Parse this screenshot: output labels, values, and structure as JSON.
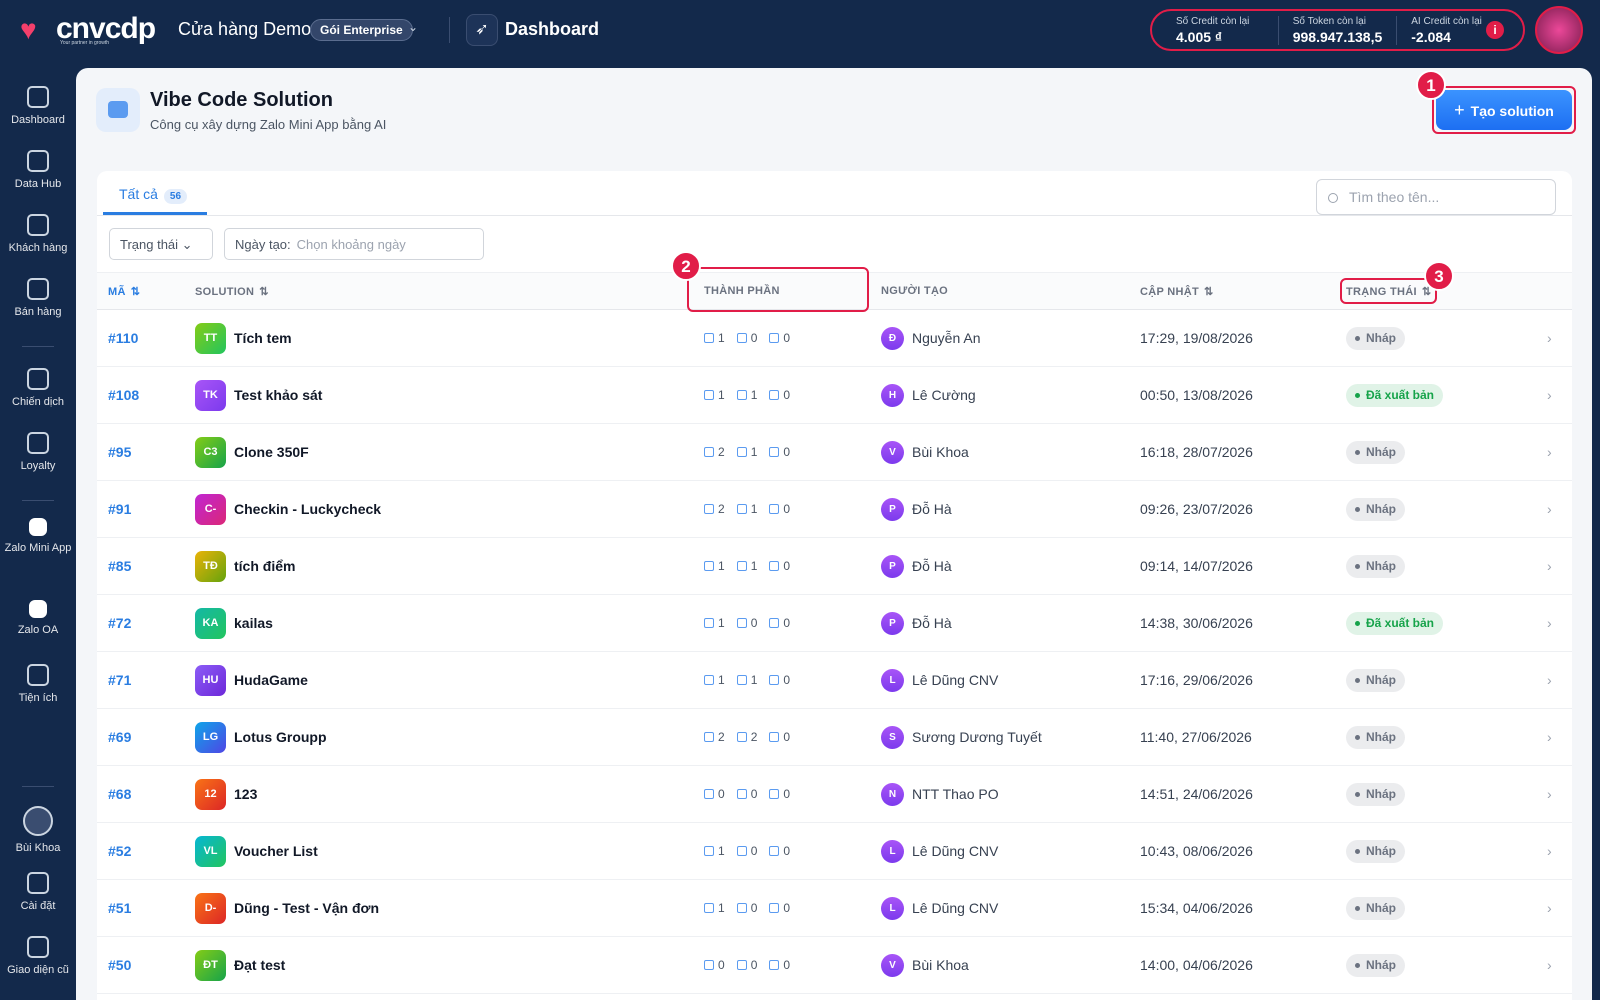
{
  "header": {
    "logo": "cnvcdp",
    "tagline": "Your partner in growth",
    "store": "Cửa hàng Demo",
    "plan": "Gói Enterprise",
    "page": "Dashboard",
    "credits": [
      {
        "label": "Số Credit còn lại",
        "value": "4.005 ₫"
      },
      {
        "label": "Số Token còn lại",
        "value": "998.947.138,5"
      },
      {
        "label": "AI Credit còn lại",
        "value": "-2.084"
      }
    ]
  },
  "sidebar": {
    "items": [
      "Dashboard",
      "Data Hub",
      "Khách hàng",
      "Bán hàng",
      "Chiến dịch",
      "Loyalty",
      "Zalo Mini App",
      "Zalo OA",
      "Tiện ích"
    ],
    "bottom": [
      "Bùi Khoa",
      "Cài đặt",
      "Giao diện cũ"
    ]
  },
  "page": {
    "title": "Vibe Code Solution",
    "subtitle": "Công cụ xây dựng Zalo Mini App bằng AI",
    "button": "Tạo solution"
  },
  "tabs": [
    {
      "label": "Tất cả",
      "count": 56
    }
  ],
  "search": "Tìm theo tên...",
  "filters": {
    "status": "Trạng thái",
    "date_label": "Ngày tạo:",
    "date_placeholder": "Chọn khoảng ngày"
  },
  "table": {
    "columns": [
      "MÃ",
      "SOLUTION",
      "THÀNH PHẦN",
      "NGƯỜI TẠO",
      "CẬP NHẬT",
      "TRẠNG THÁI"
    ],
    "rows": [
      {
        "id": "#110",
        "initials": "TT",
        "name": "Tích tem",
        "components": [
          1,
          0,
          0
        ],
        "creator_initial": "Đ",
        "creator": "Nguyễn An",
        "updated": "17:29, 19/08/2026",
        "status": {
          "label": "Nháp",
          "color": "#6b7280"
        }
      },
      {
        "id": "#108",
        "initials": "TK",
        "name": "Test khảo sát",
        "components": [
          1,
          1,
          0
        ],
        "creator_initial": "H",
        "creator": "Lê Cường",
        "updated": "00:50, 13/08/2026",
        "status": {
          "label": "Đã xuất bản",
          "color": "#16a34a"
        }
      },
      {
        "id": "#95",
        "initials": "C3",
        "name": "Clone 350F",
        "components": [
          2,
          1,
          0
        ],
        "creator_initial": "V",
        "creator": "Bùi Khoa",
        "updated": "16:18, 28/07/2026",
        "status": {
          "label": "Nháp",
          "color": "#6b7280"
        }
      },
      {
        "id": "#91",
        "initials": "C-",
        "name": "Checkin - Luckycheck",
        "components": [
          2,
          1,
          0
        ],
        "creator_initial": "P",
        "creator": "Đỗ Hà",
        "updated": "09:26, 23/07/2026",
        "status": {
          "label": "Nháp",
          "color": "#6b7280"
        }
      },
      {
        "id": "#85",
        "initials": "TĐ",
        "name": "tích điểm",
        "components": [
          1,
          1,
          0
        ],
        "creator_initial": "P",
        "creator": "Đỗ Hà",
        "updated": "09:14, 14/07/2026",
        "status": {
          "label": "Nháp",
          "color": "#6b7280"
        }
      },
      {
        "id": "#72",
        "initials": "KA",
        "name": "kailas",
        "components": [
          1,
          0,
          0
        ],
        "creator_initial": "P",
        "creator": "Đỗ Hà",
        "updated": "14:38, 30/06/2026",
        "status": {
          "label": "Đã xuất bản",
          "color": "#16a34a"
        }
      },
      {
        "id": "#71",
        "initials": "HU",
        "name": "HudaGame",
        "components": [
          1,
          1,
          0
        ],
        "creator_initial": "L",
        "creator": "Lê Dũng CNV",
        "updated": "17:16, 29/06/2026",
        "status": {
          "label": "Nháp",
          "color": "#6b7280"
        }
      },
      {
        "id": "#69",
        "initials": "LG",
        "name": "Lotus Groupp",
        "components": [
          2,
          2,
          0
        ],
        "creator_initial": "S",
        "creator": "Sương Dương Tuyết",
        "updated": "11:40, 27/06/2026",
        "status": {
          "label": "Nháp",
          "color": "#6b7280"
        }
      },
      {
        "id": "#68",
        "initials": "12",
        "name": "123",
        "components": [
          0,
          0,
          0
        ],
        "creator_initial": "N",
        "creator": "NTT Thao PO",
        "updated": "14:51, 24/06/2026",
        "status": {
          "label": "Nháp",
          "color": "#6b7280"
        }
      },
      {
        "id": "#52",
        "initials": "VL",
        "name": "Voucher List",
        "components": [
          1,
          0,
          0
        ],
        "creator_initial": "L",
        "creator": "Lê Dũng CNV",
        "updated": "10:43, 08/06/2026",
        "status": {
          "label": "Nháp",
          "color": "#6b7280"
        }
      },
      {
        "id": "#51",
        "initials": "D-",
        "name": "Dũng - Test - Vận đơn",
        "components": [
          1,
          0,
          0
        ],
        "creator_initial": "L",
        "creator": "Lê Dũng CNV",
        "updated": "15:34, 04/06/2026",
        "status": {
          "label": "Nháp",
          "color": "#6b7280"
        }
      },
      {
        "id": "#50",
        "initials": "ĐT",
        "name": "Đạt test",
        "components": [
          0,
          0,
          0
        ],
        "creator_initial": "V",
        "creator": "Bùi Khoa",
        "updated": "14:00, 04/06/2026",
        "status": {
          "label": "Nháp",
          "color": "#6b7280"
        }
      }
    ]
  },
  "annotations": [
    "1",
    "2",
    "3"
  ]
}
